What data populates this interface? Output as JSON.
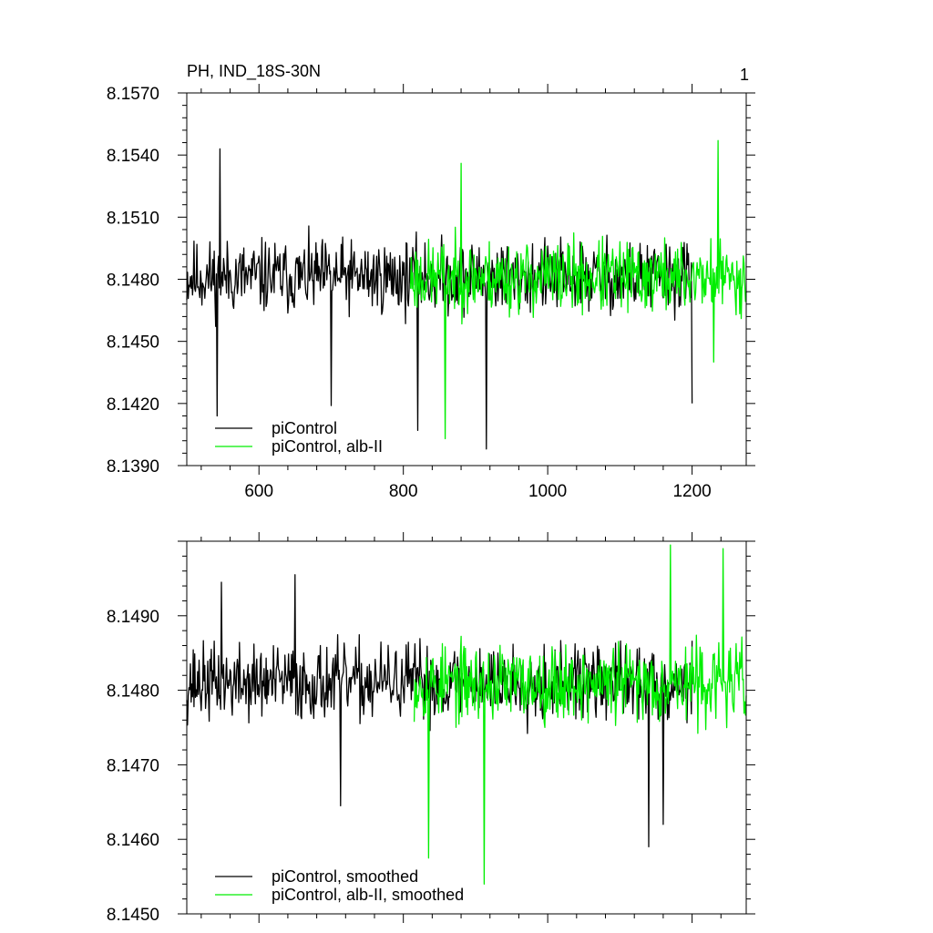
{
  "chart_data": [
    {
      "type": "line",
      "title": "PH, IND_18S-30N",
      "corner_label": "1",
      "xlim": [
        500,
        1275
      ],
      "ylim": [
        8.139,
        8.157
      ],
      "xticks": [
        600,
        800,
        1000,
        1200
      ],
      "xtick_labels": [
        "600",
        "800",
        "1000",
        "1200"
      ],
      "yticks": [
        8.139,
        8.142,
        8.145,
        8.148,
        8.151,
        8.154,
        8.157
      ],
      "ytick_labels": [
        "8.1390",
        "8.1420",
        "8.1450",
        "8.1480",
        "8.1510",
        "8.1540",
        "8.1570"
      ],
      "grid": false,
      "legend": "bottom-left",
      "series": [
        {
          "name": "piControl",
          "color": "#000000",
          "x_start": 500,
          "x_end": 1200,
          "mean": 8.1481,
          "amplitude": 0.0026,
          "seed": 11,
          "extremes": [
            [
              542,
              8.1414
            ],
            [
              546,
              8.1543
            ],
            [
              700,
              8.1419
            ],
            [
              820,
              8.1407
            ],
            [
              915,
              8.1398
            ],
            [
              1200,
              8.142
            ]
          ]
        },
        {
          "name": "piControl, alb-II",
          "color": "#00ee00",
          "x_start": 810,
          "x_end": 1275,
          "mean": 8.1481,
          "amplitude": 0.0026,
          "seed": 23,
          "extremes": [
            [
              858,
              8.1403
            ],
            [
              880,
              8.1536
            ],
            [
              1236,
              8.1547
            ],
            [
              1230,
              8.144
            ]
          ]
        }
      ]
    },
    {
      "type": "line",
      "title": "",
      "xlim": [
        500,
        1275
      ],
      "ylim": [
        8.145,
        8.15
      ],
      "xticks": [
        600,
        800,
        1000,
        1200
      ],
      "xtick_labels": [
        "",
        "",
        "",
        ""
      ],
      "yticks": [
        8.145,
        8.146,
        8.147,
        8.148,
        8.149
      ],
      "ytick_labels": [
        "8.1450",
        "8.1460",
        "8.1470",
        "8.1480",
        "8.1490"
      ],
      "grid": false,
      "legend": "bottom-left",
      "series": [
        {
          "name": "piControl, smoothed",
          "color": "#000000",
          "x_start": 500,
          "x_end": 1200,
          "mean": 8.1481,
          "amplitude": 0.00075,
          "seed": 37,
          "extremes": [
            [
              713,
              8.14645
            ],
            [
              1140,
              8.1459
            ],
            [
              1160,
              8.1462
            ],
            [
              650,
              8.14955
            ],
            [
              548,
              8.14945
            ]
          ]
        },
        {
          "name": "piControl, alb-II, smoothed",
          "color": "#00ee00",
          "x_start": 815,
          "x_end": 1275,
          "mean": 8.1481,
          "amplitude": 0.00075,
          "seed": 53,
          "extremes": [
            [
              835,
              8.14575
            ],
            [
              912,
              8.1454
            ],
            [
              1170,
              8.14995
            ],
            [
              1243,
              8.1499
            ]
          ]
        }
      ]
    }
  ]
}
